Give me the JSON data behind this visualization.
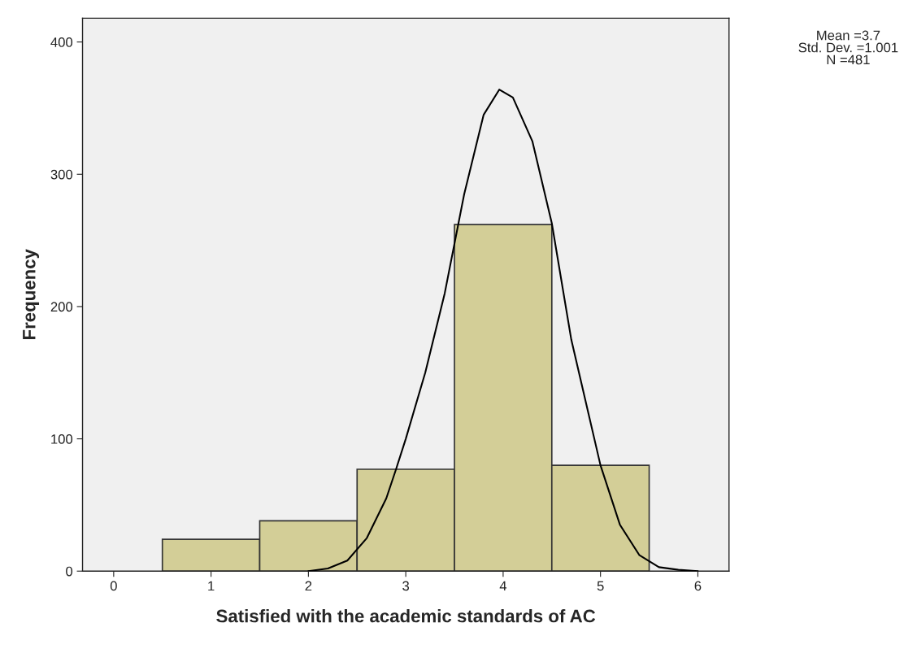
{
  "chart_data": {
    "type": "histogram",
    "xlabel": "Satisfied with the academic standards of AC",
    "ylabel": "Frequency",
    "annotations": [
      "Mean =3.7\nStd. Dev. =1.001\nN =481"
    ],
    "bins": [
      0.5,
      1.5,
      2.5,
      3.5,
      4.5,
      5.5
    ],
    "series": [
      {
        "color": "#d3ce97",
        "values": [
          24,
          38,
          77,
          262,
          80
        ]
      },
      {
        "type": "line",
        "color": "#000000",
        "x": [
          2.0,
          2.2,
          2.4,
          2.6,
          2.8,
          2.9,
          3.0,
          3.2,
          3.4,
          3.6,
          3.8,
          3.96,
          4.1,
          4.3,
          4.5,
          4.7,
          5.0,
          5.2,
          5.4,
          5.6,
          5.8,
          6.0
        ],
        "values": [
          0,
          2,
          8,
          25,
          55,
          77,
          100,
          150,
          210,
          285,
          345,
          364,
          358,
          325,
          263,
          175,
          80,
          35,
          12,
          3,
          1,
          0
        ]
      }
    ],
    "xlim": [
      -0.32,
      6.32
    ],
    "ylim": [
      0,
      418
    ],
    "xticks": [
      0,
      1,
      2,
      3,
      4,
      5,
      6
    ],
    "yticks": [
      0,
      100,
      200,
      300,
      400
    ],
    "grid": false
  }
}
